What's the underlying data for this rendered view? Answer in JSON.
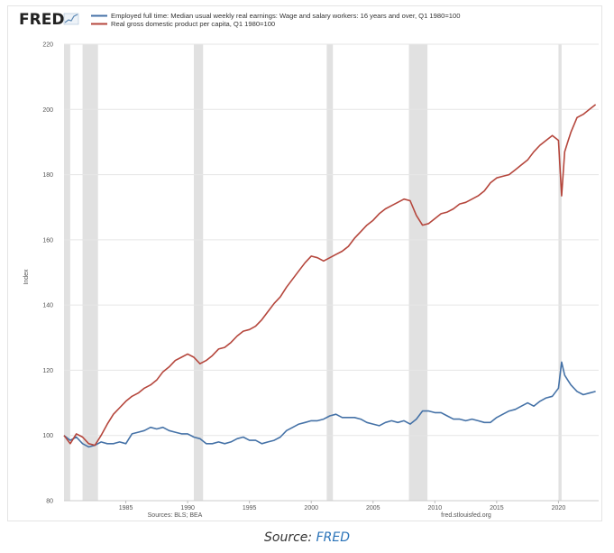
{
  "chart_data": {
    "type": "line",
    "brand": "FRED",
    "ylabel": "Index",
    "ylim": [
      80,
      220
    ],
    "yticks": [
      80,
      100,
      120,
      140,
      160,
      180,
      200,
      220
    ],
    "xlim": [
      1980.0,
      2023.25
    ],
    "xticks": [
      1985,
      1990,
      1995,
      2000,
      2005,
      2010,
      2015,
      2020
    ],
    "grid": "horizontal",
    "legend_position": "top-left",
    "source_left": "Sources: BLS; BEA",
    "source_right": "fred.stlouisfed.org",
    "recessions": [
      [
        1980.0,
        1980.5
      ],
      [
        1981.5,
        1982.75
      ],
      [
        1990.5,
        1991.25
      ],
      [
        2001.25,
        2001.75
      ],
      [
        2007.9,
        2009.4
      ],
      [
        2020.0,
        2020.25
      ]
    ],
    "series": [
      {
        "name": "Employed full time: Median usual weekly real earnings: Wage and salary workers: 16 years and over, Q1 1980=100",
        "color": "#4572a7",
        "x": [
          1980.0,
          1980.5,
          1981.0,
          1981.5,
          1982.0,
          1982.5,
          1983.0,
          1983.5,
          1984.0,
          1984.5,
          1985.0,
          1985.5,
          1986.0,
          1986.5,
          1987.0,
          1987.5,
          1988.0,
          1988.5,
          1989.0,
          1989.5,
          1990.0,
          1990.5,
          1991.0,
          1991.5,
          1992.0,
          1992.5,
          1993.0,
          1993.5,
          1994.0,
          1994.5,
          1995.0,
          1995.5,
          1996.0,
          1996.5,
          1997.0,
          1997.5,
          1998.0,
          1998.5,
          1999.0,
          1999.5,
          2000.0,
          2000.5,
          2001.0,
          2001.5,
          2002.0,
          2002.5,
          2003.0,
          2003.5,
          2004.0,
          2004.5,
          2005.0,
          2005.5,
          2006.0,
          2006.5,
          2007.0,
          2007.5,
          2008.0,
          2008.5,
          2009.0,
          2009.5,
          2010.0,
          2010.5,
          2011.0,
          2011.5,
          2012.0,
          2012.5,
          2013.0,
          2013.5,
          2014.0,
          2014.5,
          2015.0,
          2015.5,
          2016.0,
          2016.5,
          2017.0,
          2017.5,
          2018.0,
          2018.5,
          2019.0,
          2019.5,
          2020.0,
          2020.25,
          2020.5,
          2020.75,
          2021.0,
          2021.5,
          2022.0,
          2022.5,
          2023.0
        ],
        "values": [
          100.0,
          98.5,
          99.5,
          97.5,
          96.5,
          97.0,
          98.0,
          97.5,
          97.5,
          98.0,
          97.5,
          100.5,
          101.0,
          101.5,
          102.5,
          102.0,
          102.5,
          101.5,
          101.0,
          100.5,
          100.5,
          99.5,
          99.0,
          97.5,
          97.5,
          98.0,
          97.5,
          98.0,
          99.0,
          99.5,
          98.5,
          98.5,
          97.5,
          98.0,
          98.5,
          99.5,
          101.5,
          102.5,
          103.5,
          104.0,
          104.5,
          104.5,
          105.0,
          106.0,
          106.5,
          105.5,
          105.5,
          105.5,
          105.0,
          104.0,
          103.5,
          103.0,
          104.0,
          104.5,
          104.0,
          104.5,
          103.5,
          105.0,
          107.5,
          107.5,
          107.0,
          107.0,
          106.0,
          105.0,
          105.0,
          104.5,
          105.0,
          104.5,
          104.0,
          104.0,
          105.5,
          106.5,
          107.5,
          108.0,
          109.0,
          110.0,
          109.0,
          110.5,
          111.5,
          112.0,
          114.5,
          122.5,
          118.5,
          117.0,
          115.5,
          113.5,
          112.5,
          113.0,
          113.5
        ]
      },
      {
        "name": "Real gross domestic product per capita, Q1 1980=100",
        "color": "#b5463c",
        "x": [
          1980.0,
          1980.5,
          1981.0,
          1981.5,
          1982.0,
          1982.5,
          1983.0,
          1983.5,
          1984.0,
          1984.5,
          1985.0,
          1985.5,
          1986.0,
          1986.5,
          1987.0,
          1987.5,
          1988.0,
          1988.5,
          1989.0,
          1989.5,
          1990.0,
          1990.5,
          1991.0,
          1991.5,
          1992.0,
          1992.5,
          1993.0,
          1993.5,
          1994.0,
          1994.5,
          1995.0,
          1995.5,
          1996.0,
          1996.5,
          1997.0,
          1997.5,
          1998.0,
          1998.5,
          1999.0,
          1999.5,
          2000.0,
          2000.5,
          2001.0,
          2001.5,
          2002.0,
          2002.5,
          2003.0,
          2003.5,
          2004.0,
          2004.5,
          2005.0,
          2005.5,
          2006.0,
          2006.5,
          2007.0,
          2007.5,
          2008.0,
          2008.5,
          2009.0,
          2009.5,
          2010.0,
          2010.5,
          2011.0,
          2011.5,
          2012.0,
          2012.5,
          2013.0,
          2013.5,
          2014.0,
          2014.5,
          2015.0,
          2015.5,
          2016.0,
          2016.5,
          2017.0,
          2017.5,
          2018.0,
          2018.5,
          2019.0,
          2019.5,
          2020.0,
          2020.25,
          2020.5,
          2020.75,
          2021.0,
          2021.5,
          2022.0,
          2022.5,
          2023.0
        ],
        "values": [
          100.0,
          97.5,
          100.5,
          99.5,
          97.5,
          97.0,
          100.0,
          103.5,
          106.5,
          108.5,
          110.5,
          112.0,
          113.0,
          114.5,
          115.5,
          117.0,
          119.5,
          121.0,
          123.0,
          124.0,
          125.0,
          124.0,
          122.0,
          123.0,
          124.5,
          126.5,
          127.0,
          128.5,
          130.5,
          132.0,
          132.5,
          133.5,
          135.5,
          138.0,
          140.5,
          142.5,
          145.5,
          148.0,
          150.5,
          153.0,
          155.0,
          154.5,
          153.5,
          154.5,
          155.5,
          156.5,
          158.0,
          160.5,
          162.5,
          164.5,
          166.0,
          168.0,
          169.5,
          170.5,
          171.5,
          172.5,
          172.0,
          167.5,
          164.5,
          165.0,
          166.5,
          168.0,
          168.5,
          169.5,
          171.0,
          171.5,
          172.5,
          173.5,
          175.0,
          177.5,
          179.0,
          179.5,
          180.0,
          181.5,
          183.0,
          184.5,
          187.0,
          189.0,
          190.5,
          192.0,
          190.5,
          173.5,
          187.0,
          190.0,
          193.0,
          197.5,
          198.5,
          200.0,
          201.5
        ]
      }
    ]
  },
  "caption": {
    "prefix": "Source: ",
    "link": "FRED"
  }
}
